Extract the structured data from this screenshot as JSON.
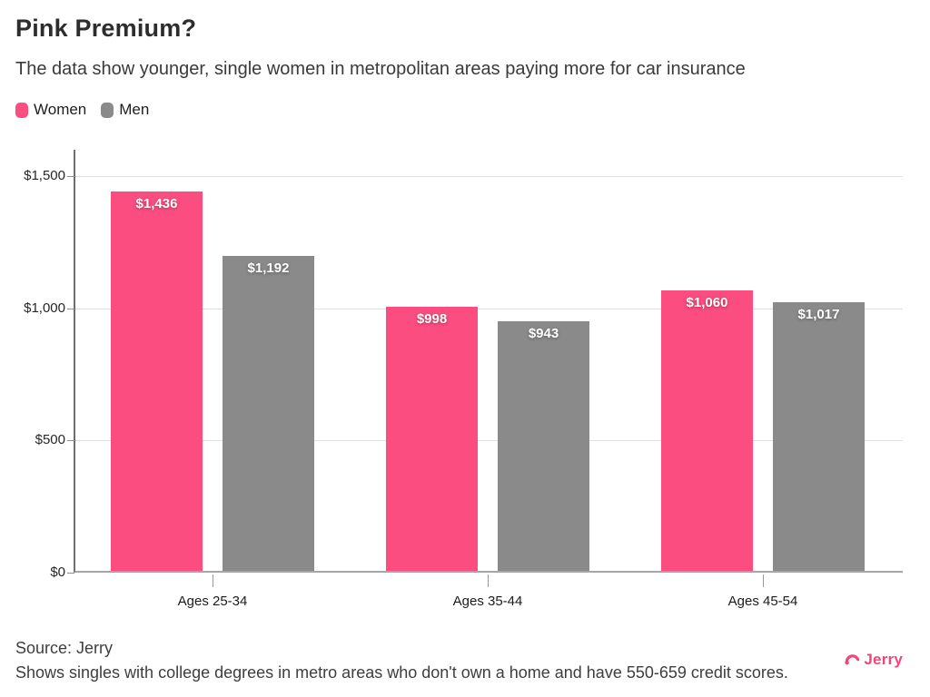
{
  "chart_data": {
    "type": "bar",
    "title": "Pink Premium?",
    "subtitle": "The data show younger, single women in metropolitan areas paying more for car insurance",
    "categories": [
      "Ages 25-34",
      "Ages 35-44",
      "Ages 45-54"
    ],
    "series": [
      {
        "name": "Women",
        "color": "#fb4d80",
        "values": [
          1436,
          998,
          1060
        ],
        "labels": [
          "$1,436",
          "$998",
          "$1,060"
        ]
      },
      {
        "name": "Men",
        "color": "#8a8a8a",
        "values": [
          1192,
          943,
          1017
        ],
        "labels": [
          "$1,192",
          "$943",
          "$1,017"
        ]
      }
    ],
    "y_axis": {
      "max": 1600,
      "ticks": [
        {
          "value": 0,
          "label": "$0"
        },
        {
          "value": 500,
          "label": "$500"
        },
        {
          "value": 1000,
          "label": "$1,000"
        },
        {
          "value": 1500,
          "label": "$1,500"
        }
      ]
    },
    "grid": "horizontal",
    "legend_position": "top-left",
    "xlabel": "",
    "ylabel": ""
  },
  "footer": {
    "source": "Source: Jerry",
    "note": "Shows singles with college degrees in metro areas who don't own a home and have 550-659 credit scores.",
    "logo_text": "Jerry"
  },
  "colors": {
    "women": "#fb4d80",
    "men": "#8a8a8a",
    "logo": "#f5437b",
    "grid": "#e0e0e0"
  }
}
